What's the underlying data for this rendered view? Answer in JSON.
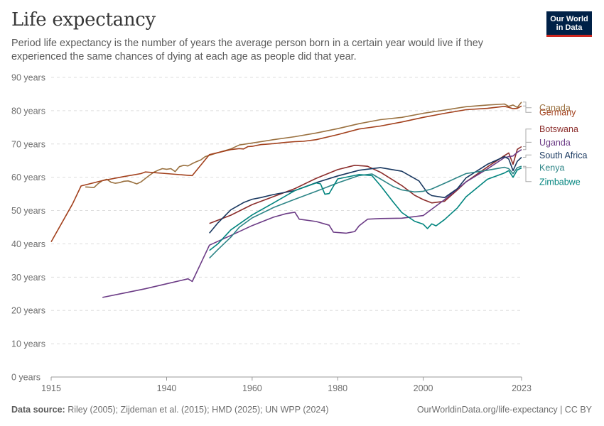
{
  "title": "Life expectancy",
  "subtitle": "Period life expectancy is the number of years the average person born in a certain year would live if they experienced the same chances of dying at each age as people did that year.",
  "logo": {
    "line1": "Our World",
    "line2": "in Data"
  },
  "footer": {
    "source_label": "Data source:",
    "source_text": "Riley (2005); Zijdeman et al. (2015); HMD (2025); UN WPP (2024)",
    "url_text": "OurWorldinData.org/life-expectancy | CC BY"
  },
  "chart_data": {
    "type": "line",
    "title": "Life expectancy",
    "ylim": [
      0,
      90
    ],
    "xlim": [
      1913,
      2023
    ],
    "y_ticks": [
      0,
      10,
      20,
      30,
      40,
      50,
      60,
      70,
      80,
      90
    ],
    "y_tick_labels": [
      "0 years",
      "10 years",
      "20 years",
      "30 years",
      "40 years",
      "50 years",
      "60 years",
      "70 years",
      "80 years",
      "90 years"
    ],
    "x_ticks": [
      1913,
      1940,
      1960,
      1980,
      2000,
      2023
    ],
    "x_tick_labels": [
      "1915",
      "1940",
      "1960",
      "1980",
      "2000",
      "2023"
    ],
    "grid": "horizontal-dashed",
    "legend": "right",
    "series": [
      {
        "name": "Canada",
        "color": "#9a7140",
        "label_y": 80.9,
        "points": [
          [
            1921,
            57.1
          ],
          [
            1922,
            57.0
          ],
          [
            1923,
            56.9
          ],
          [
            1924,
            58.1
          ],
          [
            1925,
            59.0
          ],
          [
            1926,
            59.4
          ],
          [
            1927,
            58.5
          ],
          [
            1928,
            58.2
          ],
          [
            1929,
            58.4
          ],
          [
            1930,
            58.8
          ],
          [
            1931,
            58.9
          ],
          [
            1932,
            58.5
          ],
          [
            1933,
            58.0
          ],
          [
            1934,
            58.6
          ],
          [
            1935,
            59.6
          ],
          [
            1936,
            60.6
          ],
          [
            1937,
            61.5
          ],
          [
            1938,
            62.1
          ],
          [
            1939,
            62.6
          ],
          [
            1940,
            62.4
          ],
          [
            1941,
            62.6
          ],
          [
            1942,
            61.7
          ],
          [
            1943,
            63.2
          ],
          [
            1944,
            63.6
          ],
          [
            1945,
            63.4
          ],
          [
            1946,
            64.1
          ],
          [
            1947,
            64.7
          ],
          [
            1948,
            65.2
          ],
          [
            1949,
            66.2
          ],
          [
            1950,
            66.6
          ],
          [
            1952,
            67.4
          ],
          [
            1955,
            68.5
          ],
          [
            1957,
            69.7
          ],
          [
            1960,
            70.3
          ],
          [
            1965,
            71.3
          ],
          [
            1970,
            72.2
          ],
          [
            1975,
            73.3
          ],
          [
            1980,
            74.6
          ],
          [
            1985,
            76.1
          ],
          [
            1990,
            77.3
          ],
          [
            1995,
            78.0
          ],
          [
            2000,
            79.2
          ],
          [
            2005,
            80.2
          ],
          [
            2010,
            81.2
          ],
          [
            2015,
            81.7
          ],
          [
            2019,
            82.0
          ],
          [
            2020,
            81.3
          ],
          [
            2021,
            81.7
          ],
          [
            2022,
            81.0
          ],
          [
            2023,
            82.6
          ]
        ]
      },
      {
        "name": "Germany",
        "color": "#a2401c",
        "label_y": 79.5,
        "points": [
          [
            1913,
            40.6
          ],
          [
            1918,
            52.0
          ],
          [
            1920,
            57.4
          ],
          [
            1925,
            59.0
          ],
          [
            1930,
            60.2
          ],
          [
            1934,
            61.1
          ],
          [
            1935,
            61.6
          ],
          [
            1940,
            61.1
          ],
          [
            1945,
            60.6
          ],
          [
            1946,
            60.5
          ],
          [
            1950,
            66.8
          ],
          [
            1955,
            68.3
          ],
          [
            1957,
            68.6
          ],
          [
            1958,
            68.5
          ],
          [
            1959,
            69.2
          ],
          [
            1960,
            69.3
          ],
          [
            1962,
            69.8
          ],
          [
            1965,
            70.1
          ],
          [
            1968,
            70.5
          ],
          [
            1970,
            70.7
          ],
          [
            1972,
            70.8
          ],
          [
            1975,
            71.3
          ],
          [
            1980,
            72.8
          ],
          [
            1985,
            74.5
          ],
          [
            1990,
            75.4
          ],
          [
            1995,
            76.6
          ],
          [
            2000,
            78.0
          ],
          [
            2005,
            79.2
          ],
          [
            2010,
            80.3
          ],
          [
            2015,
            80.7
          ],
          [
            2019,
            81.3
          ],
          [
            2020,
            81.0
          ],
          [
            2021,
            80.6
          ],
          [
            2022,
            80.7
          ],
          [
            2023,
            81.4
          ]
        ]
      },
      {
        "name": "Botswana",
        "color": "#8b2d2b",
        "label_y": 74.5,
        "points": [
          [
            1950,
            46.1
          ],
          [
            1955,
            48.6
          ],
          [
            1960,
            51.8
          ],
          [
            1965,
            54.2
          ],
          [
            1970,
            56.6
          ],
          [
            1975,
            59.7
          ],
          [
            1980,
            62.3
          ],
          [
            1984,
            63.6
          ],
          [
            1987,
            63.3
          ],
          [
            1990,
            61.5
          ],
          [
            1995,
            57.5
          ],
          [
            1998,
            54.6
          ],
          [
            2000,
            53.3
          ],
          [
            2002,
            52.3
          ],
          [
            2005,
            52.8
          ],
          [
            2008,
            56.2
          ],
          [
            2010,
            58.6
          ],
          [
            2015,
            63.1
          ],
          [
            2019,
            66.5
          ],
          [
            2020,
            67.3
          ],
          [
            2021,
            63.9
          ],
          [
            2022,
            68.4
          ],
          [
            2023,
            69.2
          ]
        ]
      },
      {
        "name": "Uganda",
        "color": "#6c3c86",
        "label_y": 70.5,
        "points": [
          [
            1925,
            23.9
          ],
          [
            1930,
            25.2
          ],
          [
            1935,
            26.5
          ],
          [
            1940,
            28.0
          ],
          [
            1945,
            29.5
          ],
          [
            1946,
            28.7
          ],
          [
            1950,
            39.6
          ],
          [
            1955,
            42.5
          ],
          [
            1960,
            45.5
          ],
          [
            1965,
            48.0
          ],
          [
            1968,
            49.1
          ],
          [
            1970,
            49.5
          ],
          [
            1971,
            47.4
          ],
          [
            1975,
            46.7
          ],
          [
            1978,
            45.6
          ],
          [
            1979,
            43.5
          ],
          [
            1982,
            43.2
          ],
          [
            1984,
            43.7
          ],
          [
            1985,
            45.4
          ],
          [
            1987,
            47.4
          ],
          [
            1990,
            47.6
          ],
          [
            1995,
            47.7
          ],
          [
            2000,
            48.5
          ],
          [
            2005,
            53.3
          ],
          [
            2010,
            58.6
          ],
          [
            2015,
            62.5
          ],
          [
            2019,
            65.9
          ],
          [
            2020,
            66.2
          ],
          [
            2021,
            66.4
          ],
          [
            2022,
            67.5
          ],
          [
            2023,
            68.3
          ]
        ]
      },
      {
        "name": "South Africa",
        "color": "#18375f",
        "label_y": 66.7,
        "points": [
          [
            1950,
            43.2
          ],
          [
            1952,
            46.3
          ],
          [
            1955,
            50.2
          ],
          [
            1958,
            52.4
          ],
          [
            1960,
            53.4
          ],
          [
            1962,
            53.9
          ],
          [
            1965,
            54.8
          ],
          [
            1970,
            56.0
          ],
          [
            1975,
            58.4
          ],
          [
            1980,
            60.4
          ],
          [
            1985,
            62.1
          ],
          [
            1990,
            62.9
          ],
          [
            1995,
            61.8
          ],
          [
            1999,
            58.9
          ],
          [
            2001,
            55.3
          ],
          [
            2002,
            54.5
          ],
          [
            2005,
            53.9
          ],
          [
            2008,
            56.6
          ],
          [
            2010,
            59.8
          ],
          [
            2015,
            63.9
          ],
          [
            2019,
            66.2
          ],
          [
            2020,
            65.5
          ],
          [
            2021,
            62.0
          ],
          [
            2022,
            64.8
          ],
          [
            2023,
            66.0
          ]
        ]
      },
      {
        "name": "Kenya",
        "color": "#2d8587",
        "label_y": 62.9,
        "points": [
          [
            1950,
            35.7
          ],
          [
            1952,
            38.3
          ],
          [
            1955,
            42.0
          ],
          [
            1957,
            45.0
          ],
          [
            1960,
            47.8
          ],
          [
            1965,
            50.9
          ],
          [
            1970,
            53.4
          ],
          [
            1975,
            55.8
          ],
          [
            1980,
            58.3
          ],
          [
            1985,
            60.5
          ],
          [
            1988,
            61.0
          ],
          [
            1990,
            59.5
          ],
          [
            1993,
            57.2
          ],
          [
            1995,
            56.2
          ],
          [
            1998,
            55.6
          ],
          [
            2000,
            55.8
          ],
          [
            2002,
            56.5
          ],
          [
            2005,
            58.2
          ],
          [
            2010,
            61.1
          ],
          [
            2015,
            62.1
          ],
          [
            2019,
            63.0
          ],
          [
            2020,
            62.6
          ],
          [
            2021,
            61.1
          ],
          [
            2022,
            62.9
          ],
          [
            2023,
            63.3
          ]
        ]
      },
      {
        "name": "Zimbabwe",
        "color": "#00847e",
        "label_y": 58.7,
        "points": [
          [
            1950,
            38.0
          ],
          [
            1952,
            40.0
          ],
          [
            1955,
            44.2
          ],
          [
            1960,
            48.7
          ],
          [
            1965,
            52.3
          ],
          [
            1970,
            56.0
          ],
          [
            1975,
            58.3
          ],
          [
            1976,
            58.0
          ],
          [
            1977,
            54.9
          ],
          [
            1978,
            55.1
          ],
          [
            1980,
            59.5
          ],
          [
            1985,
            60.8
          ],
          [
            1988,
            60.5
          ],
          [
            1990,
            57.5
          ],
          [
            1993,
            52.5
          ],
          [
            1995,
            49.4
          ],
          [
            1998,
            46.8
          ],
          [
            2000,
            45.9
          ],
          [
            2001,
            44.6
          ],
          [
            2002,
            46.0
          ],
          [
            2003,
            45.4
          ],
          [
            2005,
            47.3
          ],
          [
            2008,
            50.8
          ],
          [
            2010,
            54.1
          ],
          [
            2015,
            59.4
          ],
          [
            2019,
            61.3
          ],
          [
            2020,
            62.0
          ],
          [
            2021,
            60.0
          ],
          [
            2022,
            62.2
          ],
          [
            2023,
            62.8
          ]
        ]
      }
    ]
  }
}
